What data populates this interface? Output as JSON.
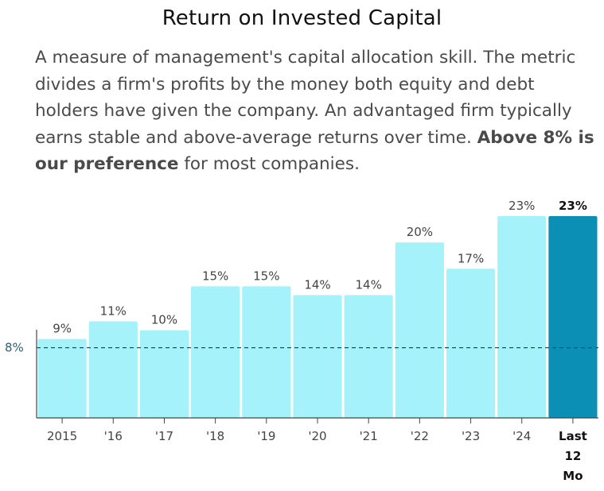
{
  "title": "Return on Invested Capital",
  "description": {
    "text": "A measure of management's capital allocation skill. The metric divides a firm's profits by the money both equity and debt holders have given the company. An advantaged firm typically earns stable and above-average returns over time. ",
    "bold": "Above 8% is our preference",
    "tail": " for most companies."
  },
  "colors": {
    "bar": "#a6f2fb",
    "highlight_bar": "#0b8fb5",
    "reference_line": "#1f4f66",
    "axis": "#444444"
  },
  "chart_data": {
    "type": "bar",
    "title": "Return on Invested Capital",
    "xlabel": "",
    "ylabel": "",
    "unit": "%",
    "ylim": [
      0,
      23
    ],
    "grid": false,
    "legend": "none",
    "categories": [
      "2015",
      "'16",
      "'17",
      "'18",
      "'19",
      "'20",
      "'21",
      "'22",
      "'23",
      "'24",
      "Last 12 Mo"
    ],
    "values": [
      9,
      11,
      10,
      15,
      15,
      14,
      14,
      20,
      17,
      23,
      23
    ],
    "data_labels": [
      "9%",
      "11%",
      "10%",
      "15%",
      "15%",
      "14%",
      "14%",
      "20%",
      "17%",
      "23%",
      "23%"
    ],
    "highlight_index": 10,
    "reference_line": {
      "value": 8,
      "label": "8%",
      "style": "dashed"
    }
  }
}
